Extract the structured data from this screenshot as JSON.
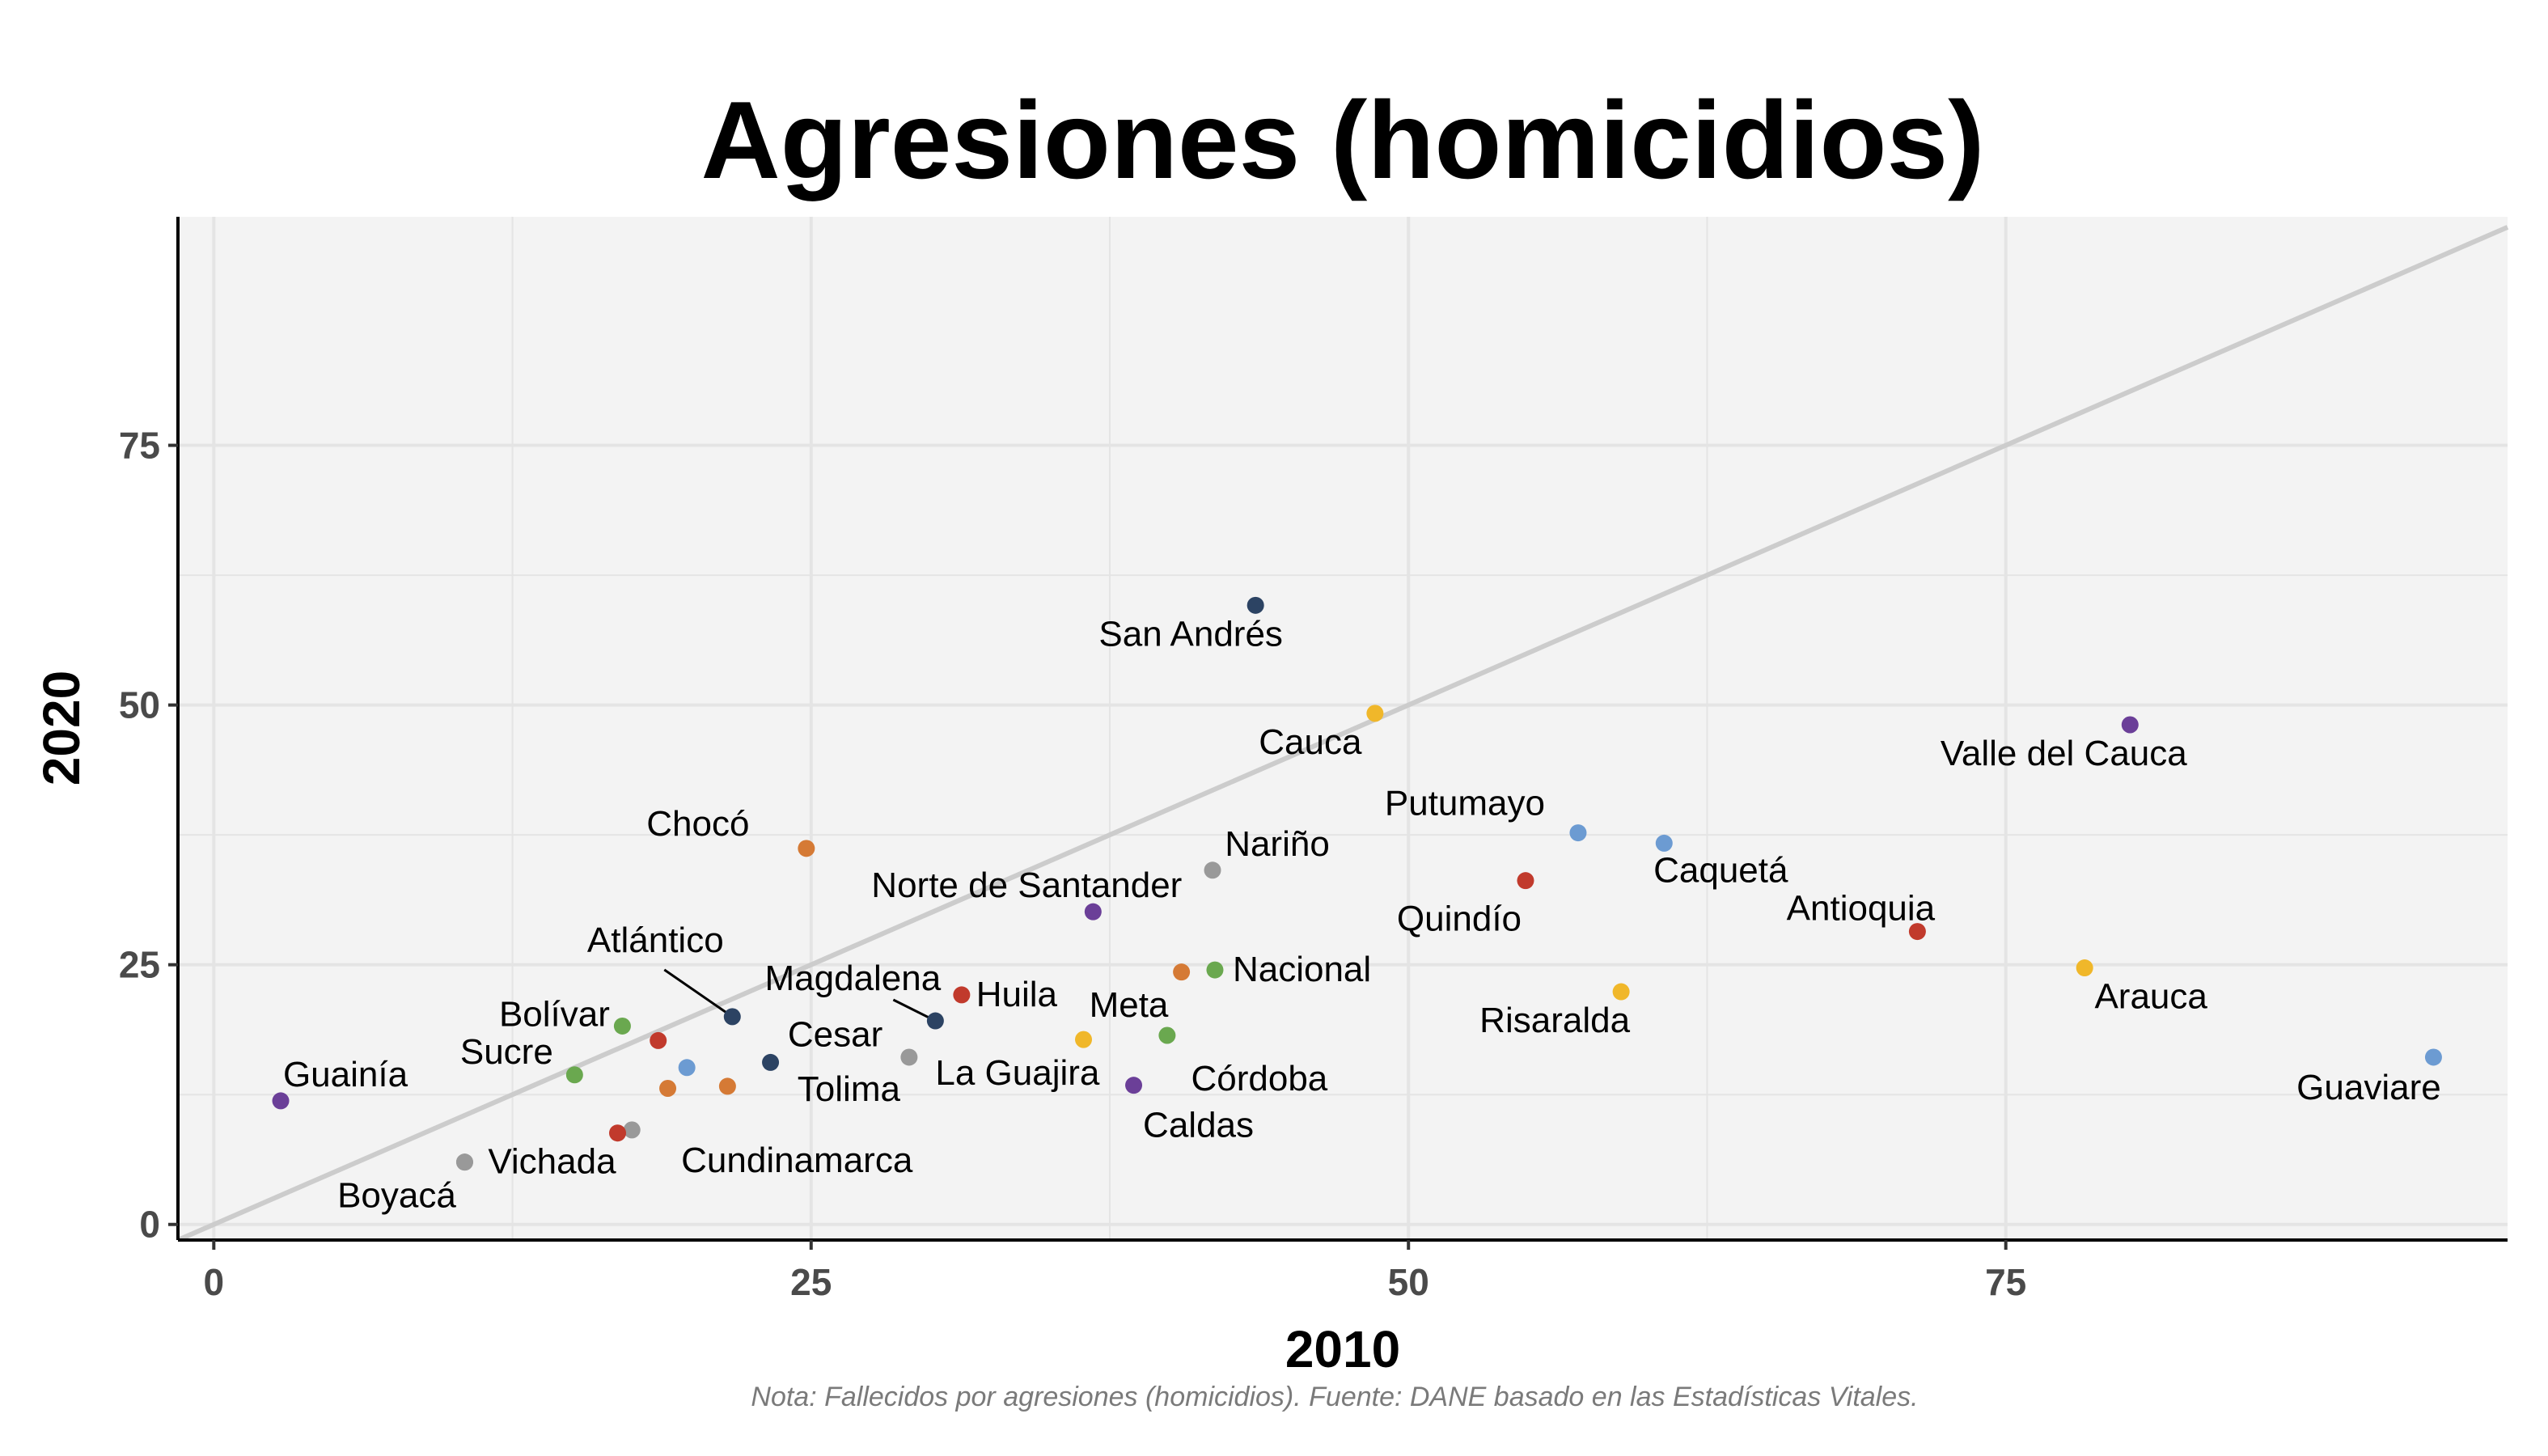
{
  "chart_data": {
    "type": "scatter",
    "title": "Agresiones (homicidios)",
    "xlabel": "2010",
    "ylabel": "2020",
    "caption": "Nota: Fallecidos por agresiones (homicidios). Fuente: DANE basado en las Estadísticas Vitales.",
    "xlim": [
      -1.5,
      96
    ],
    "ylim": [
      -1.5,
      97
    ],
    "x_ticks": [
      0,
      25,
      50,
      75
    ],
    "y_ticks": [
      0,
      25,
      50,
      75
    ],
    "grid": true,
    "reference_line": "y = x",
    "colors": {
      "panel": "#f3f3f3",
      "grid": "#e4e4e4",
      "reference_line": "#cccccc",
      "palette": [
        "#2c4363",
        "#6b3f98",
        "#d57a35",
        "#f0b72a",
        "#6c9bd2",
        "#c13a2c",
        "#6aa84f",
        "#999999"
      ]
    },
    "points": [
      {
        "label": "San Andrés",
        "x": 43.6,
        "y": 59.6,
        "color": "#2c4363"
      },
      {
        "label": "Cauca",
        "x": 48.6,
        "y": 49.2,
        "color": "#f0b72a"
      },
      {
        "label": "Valle del Cauca",
        "x": 80.2,
        "y": 48.1,
        "color": "#6b3f98"
      },
      {
        "label": "Putumayo",
        "x": 57.1,
        "y": 37.7,
        "color": "#6c9bd2"
      },
      {
        "label": "Caquetá",
        "x": 60.7,
        "y": 36.7,
        "color": "#6c9bd2"
      },
      {
        "label": "Chocó",
        "x": 24.8,
        "y": 36.2,
        "color": "#d57a35"
      },
      {
        "label": "Nariño",
        "x": 41.8,
        "y": 34.1,
        "color": "#999999"
      },
      {
        "label": "Quindío",
        "x": 54.9,
        "y": 33.1,
        "color": "#c13a2c"
      },
      {
        "label": "Norte de Santander",
        "x": 36.8,
        "y": 30.1,
        "color": "#6b3f98"
      },
      {
        "label": "Antioquia",
        "x": 71.3,
        "y": 28.2,
        "color": "#c13a2c"
      },
      {
        "label": "Arauca",
        "x": 78.3,
        "y": 24.7,
        "color": "#f0b72a"
      },
      {
        "label": "Nacional",
        "x": 41.9,
        "y": 24.5,
        "color": "#6aa84f"
      },
      {
        "label": "",
        "x": 40.5,
        "y": 24.3,
        "color": "#d57a35"
      },
      {
        "label": "Risaralda",
        "x": 58.9,
        "y": 22.4,
        "color": "#f0b72a"
      },
      {
        "label": "Huila",
        "x": 31.3,
        "y": 22.1,
        "color": "#c13a2c"
      },
      {
        "label": "Atlántico",
        "x": 21.7,
        "y": 20.0,
        "color": "#2c4363"
      },
      {
        "label": "Magdalena",
        "x": 30.2,
        "y": 19.6,
        "color": "#2c4363"
      },
      {
        "label": "Bolívar",
        "x": 17.1,
        "y": 19.1,
        "color": "#6aa84f"
      },
      {
        "label": "Córdoba",
        "x": 39.9,
        "y": 18.2,
        "color": "#6aa84f"
      },
      {
        "label": "Meta",
        "x": 36.4,
        "y": 17.8,
        "color": "#f0b72a"
      },
      {
        "label": "",
        "x": 18.6,
        "y": 17.7,
        "color": "#c13a2c"
      },
      {
        "label": "Guaviare",
        "x": 92.9,
        "y": 16.1,
        "color": "#6c9bd2"
      },
      {
        "label": "La Guajira",
        "x": 29.1,
        "y": 16.1,
        "color": "#999999"
      },
      {
        "label": "Cesar",
        "x": 23.3,
        "y": 15.6,
        "color": "#2c4363"
      },
      {
        "label": "",
        "x": 19.8,
        "y": 15.1,
        "color": "#6c9bd2"
      },
      {
        "label": "Sucre",
        "x": 15.1,
        "y": 14.4,
        "color": "#6aa84f"
      },
      {
        "label": "Caldas",
        "x": 38.5,
        "y": 13.4,
        "color": "#6b3f98"
      },
      {
        "label": "Tolima",
        "x": 21.5,
        "y": 13.3,
        "color": "#d57a35"
      },
      {
        "label": "",
        "x": 19.0,
        "y": 13.1,
        "color": "#d57a35"
      },
      {
        "label": "Guainía",
        "x": 2.8,
        "y": 11.9,
        "color": "#6b3f98"
      },
      {
        "label": "Cundinamarca",
        "x": 17.5,
        "y": 9.1,
        "color": "#999999"
      },
      {
        "label": "",
        "x": 16.9,
        "y": 8.8,
        "color": "#c13a2c"
      },
      {
        "label": "Vichada",
        "x": 10.5,
        "y": 6.0,
        "color": "#999999"
      },
      {
        "label": "Boyacá",
        "x": 10.5,
        "y": 6.0,
        "color": "#999999"
      }
    ]
  }
}
